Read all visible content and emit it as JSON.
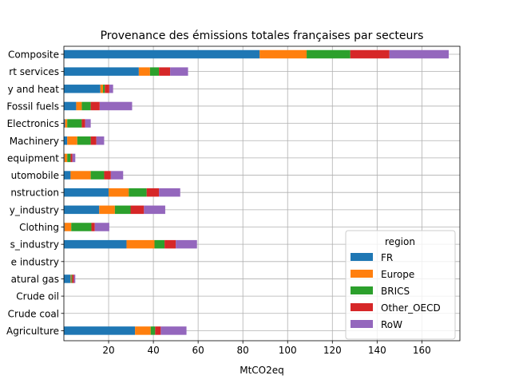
{
  "chart_data": {
    "type": "bar",
    "orientation": "horizontal",
    "stacked": true,
    "title": "Provenance des émissions totales françaises par secteurs",
    "xlabel": "MtCO2eq",
    "ylabel": "",
    "xlim": [
      0,
      177
    ],
    "xticks": [
      20,
      40,
      60,
      80,
      100,
      120,
      140,
      160
    ],
    "grid": true,
    "legend": {
      "title": "region",
      "position": "lower-right"
    },
    "categories": [
      "Composite",
      "rt services",
      "y and heat",
      "Fossil fuels",
      "Electronics",
      "Machinery",
      "equipment",
      "utomobile",
      "nstruction",
      "y_industry",
      "Clothing",
      "s_industry",
      "e industry",
      "atural gas",
      "Crude oil",
      "Crude coal",
      "Agriculture"
    ],
    "series": [
      {
        "name": "FR",
        "color": "#1f77b4",
        "values": [
          87.5,
          33.5,
          16.3,
          5.5,
          0.5,
          1.5,
          0.3,
          3.0,
          20.0,
          15.8,
          0.3,
          28.0,
          0,
          3.0,
          0,
          0,
          31.8
        ]
      },
      {
        "name": "Europe",
        "color": "#ff7f0e",
        "values": [
          21.0,
          5.0,
          1.2,
          2.5,
          1.0,
          4.5,
          1.2,
          9.0,
          9.0,
          7.0,
          3.0,
          12.5,
          0,
          0.3,
          0,
          0,
          7.0
        ]
      },
      {
        "name": "BRICS",
        "color": "#2ca02c",
        "values": [
          19.5,
          4.0,
          0.8,
          4.0,
          6.5,
          6.0,
          1.5,
          6.0,
          8.0,
          7.0,
          9.0,
          4.5,
          0,
          0.4,
          0,
          0,
          2.0
        ]
      },
      {
        "name": "Other_OECD",
        "color": "#d62728",
        "values": [
          17.5,
          5.0,
          2.0,
          4.0,
          1.5,
          2.5,
          0.8,
          3.0,
          5.5,
          6.0,
          1.5,
          5.0,
          0,
          0.8,
          0,
          0,
          2.5
        ]
      },
      {
        "name": "RoW",
        "color": "#9467bd",
        "values": [
          26.5,
          8.0,
          1.7,
          14.5,
          2.5,
          3.5,
          1.3,
          5.5,
          9.5,
          9.5,
          6.5,
          9.5,
          0,
          0.6,
          0,
          0,
          11.5
        ]
      }
    ]
  }
}
